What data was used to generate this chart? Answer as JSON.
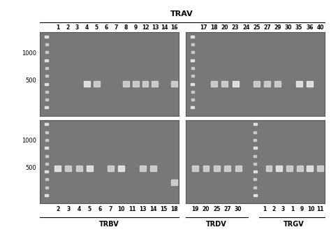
{
  "title": "TRAV",
  "bg_color": "#aaaaaa",
  "gel_bg": "#888888",
  "white": "#ffffff",
  "light_gray": "#cccccc",
  "panel_bg": "#909090",
  "ladder_color": "#ffffff",
  "band_color": "#e8e8e8",
  "bright_band": "#f5f5f5",
  "top_left_lane_labels": [
    "1",
    "2",
    "3",
    "4",
    "5",
    "6",
    "7",
    "8",
    "9",
    "12",
    "13",
    "14",
    "16"
  ],
  "top_right_lane_labels": [
    "17",
    "18",
    "20",
    "23",
    "24",
    "25",
    "27",
    "29",
    "30",
    "35",
    "36",
    "40"
  ],
  "bottom_left_lane_labels": [
    "2",
    "3",
    "4",
    "5",
    "6",
    "7",
    "10",
    "11",
    "13",
    "14",
    "15",
    "18"
  ],
  "bottom_right_lane_labels_trdv": [
    "19",
    "20",
    "25",
    "27",
    "30"
  ],
  "bottom_right_lane_labels_trgv": [
    "1",
    "2",
    "3",
    "1",
    "9",
    "10",
    "11"
  ],
  "bottom_labels": [
    "TRBV",
    "TRDV",
    "TRGV"
  ],
  "ylabel_left": [
    "1000",
    "500"
  ],
  "figure_bg": "#f0f0f0"
}
